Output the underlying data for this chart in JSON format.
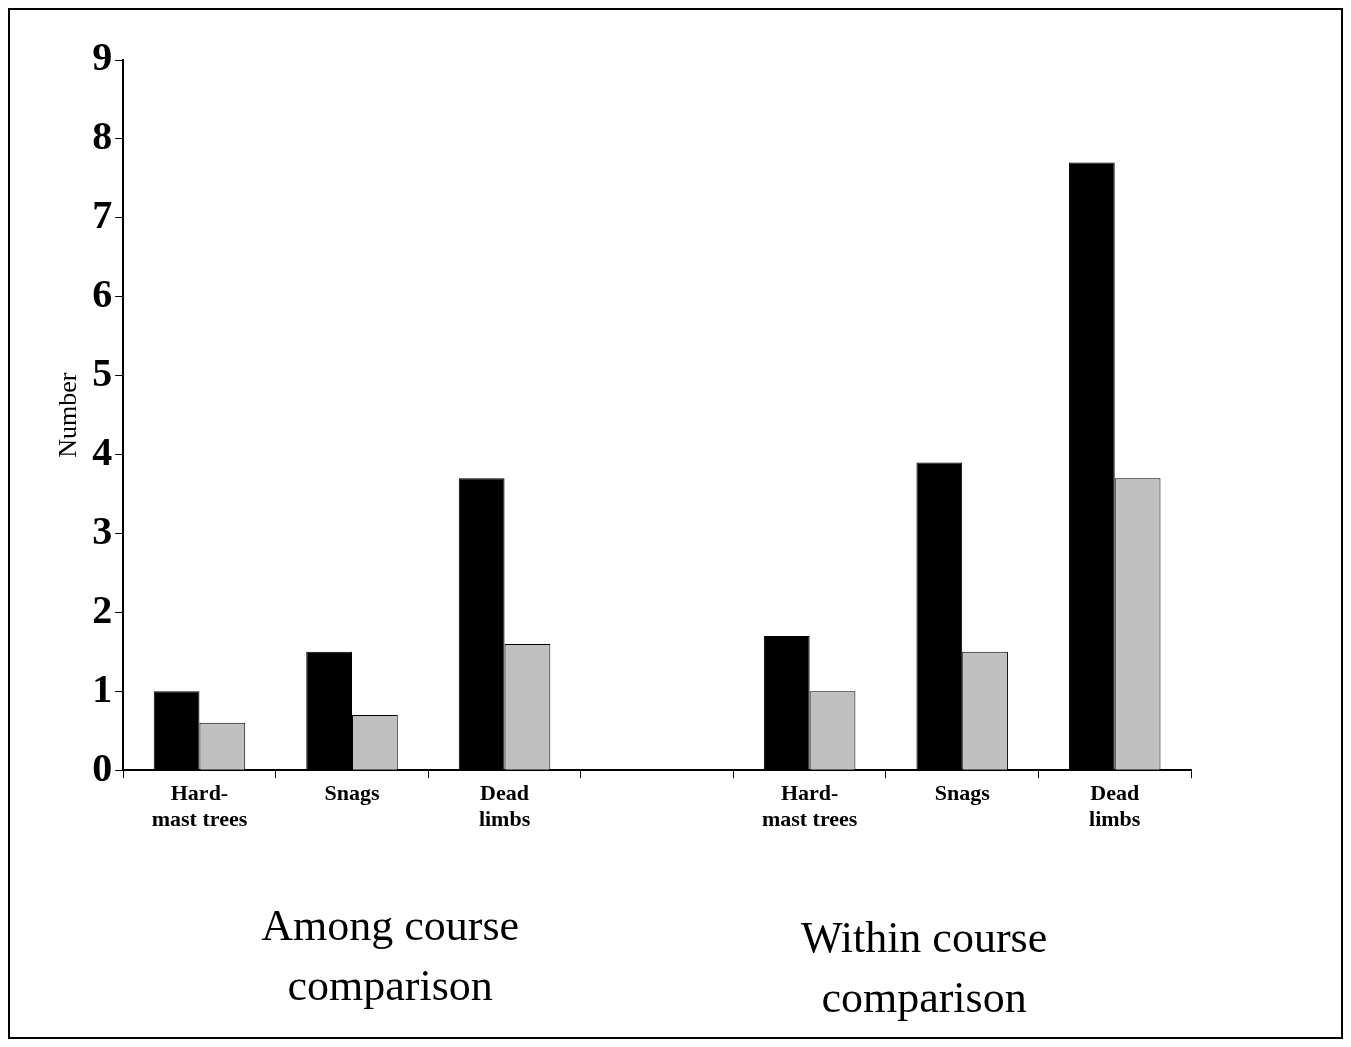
{
  "chart_data": {
    "type": "bar",
    "ylabel": "Number",
    "categories": [
      "Hard-mast trees",
      "Snags",
      "Dead limbs",
      null,
      "Hard-mast trees",
      "Snags",
      "Dead limbs"
    ],
    "series": [
      {
        "color": "#000000",
        "values": [
          1.0,
          1.5,
          3.7,
          null,
          1.7,
          3.9,
          7.7
        ]
      },
      {
        "color": "#c0c0c0",
        "values": [
          0.6,
          0.7,
          1.6,
          null,
          1.0,
          1.5,
          3.7
        ]
      }
    ],
    "ylim": [
      0,
      9
    ],
    "yticks": [
      0,
      1,
      2,
      3,
      4,
      5,
      6,
      7,
      8,
      9
    ],
    "grid": false,
    "legend": false,
    "annotations": [
      "Among course comparison",
      "Within course comparison"
    ]
  }
}
